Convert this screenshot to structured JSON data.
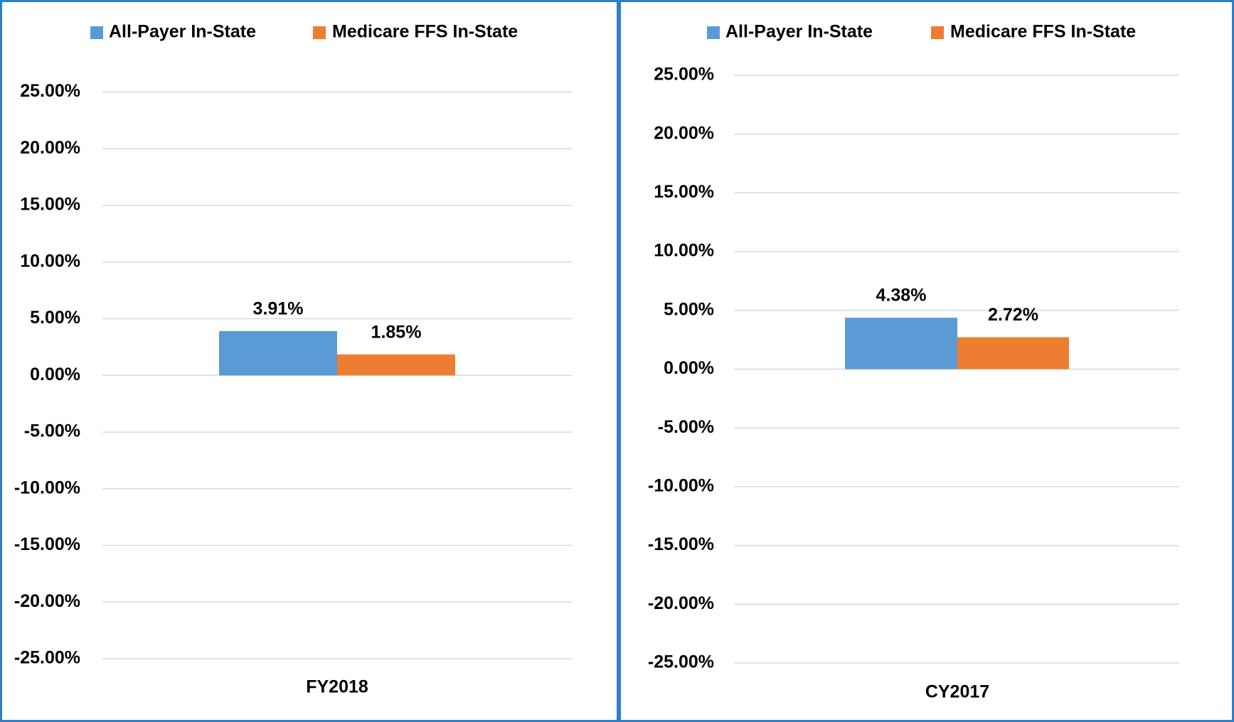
{
  "chart_data": [
    {
      "type": "bar",
      "categories": [
        "FY2018"
      ],
      "series": [
        {
          "name": "All-Payer In-State",
          "color": "#5b9bd5",
          "values": [
            3.91
          ],
          "value_labels": [
            "3.91%"
          ]
        },
        {
          "name": "Medicare FFS In-State",
          "color": "#ed7d31",
          "values": [
            1.85
          ],
          "value_labels": [
            "1.85%"
          ]
        }
      ],
      "ylim": [
        -25,
        25
      ],
      "yticks": [
        {
          "value": -25,
          "label": "-25.00%"
        },
        {
          "value": -20,
          "label": "-20.00%"
        },
        {
          "value": -15,
          "label": "-15.00%"
        },
        {
          "value": -10,
          "label": "-10.00%"
        },
        {
          "value": -5,
          "label": "-5.00%"
        },
        {
          "value": 0,
          "label": "0.00%"
        },
        {
          "value": 5,
          "label": "5.00%"
        },
        {
          "value": 10,
          "label": "10.00%"
        },
        {
          "value": 15,
          "label": "15.00%"
        },
        {
          "value": 20,
          "label": "20.00%"
        },
        {
          "value": 25,
          "label": "25.00%"
        }
      ],
      "grid": true,
      "legend": "top"
    },
    {
      "type": "bar",
      "categories": [
        "CY2017"
      ],
      "series": [
        {
          "name": "All-Payer In-State",
          "color": "#5b9bd5",
          "values": [
            4.38
          ],
          "value_labels": [
            "4.38%"
          ]
        },
        {
          "name": "Medicare FFS In-State",
          "color": "#ed7d31",
          "values": [
            2.72
          ],
          "value_labels": [
            "2.72%"
          ]
        }
      ],
      "ylim": [
        -25,
        25
      ],
      "yticks": [
        {
          "value": -25,
          "label": "-25.00%"
        },
        {
          "value": -20,
          "label": "-20.00%"
        },
        {
          "value": -15,
          "label": "-15.00%"
        },
        {
          "value": -10,
          "label": "-10.00%"
        },
        {
          "value": -5,
          "label": "-5.00%"
        },
        {
          "value": 0,
          "label": "0.00%"
        },
        {
          "value": 5,
          "label": "5.00%"
        },
        {
          "value": 10,
          "label": "10.00%"
        },
        {
          "value": 15,
          "label": "15.00%"
        },
        {
          "value": 20,
          "label": "20.00%"
        },
        {
          "value": 25,
          "label": "25.00%"
        }
      ],
      "grid": true,
      "legend": "top"
    }
  ]
}
